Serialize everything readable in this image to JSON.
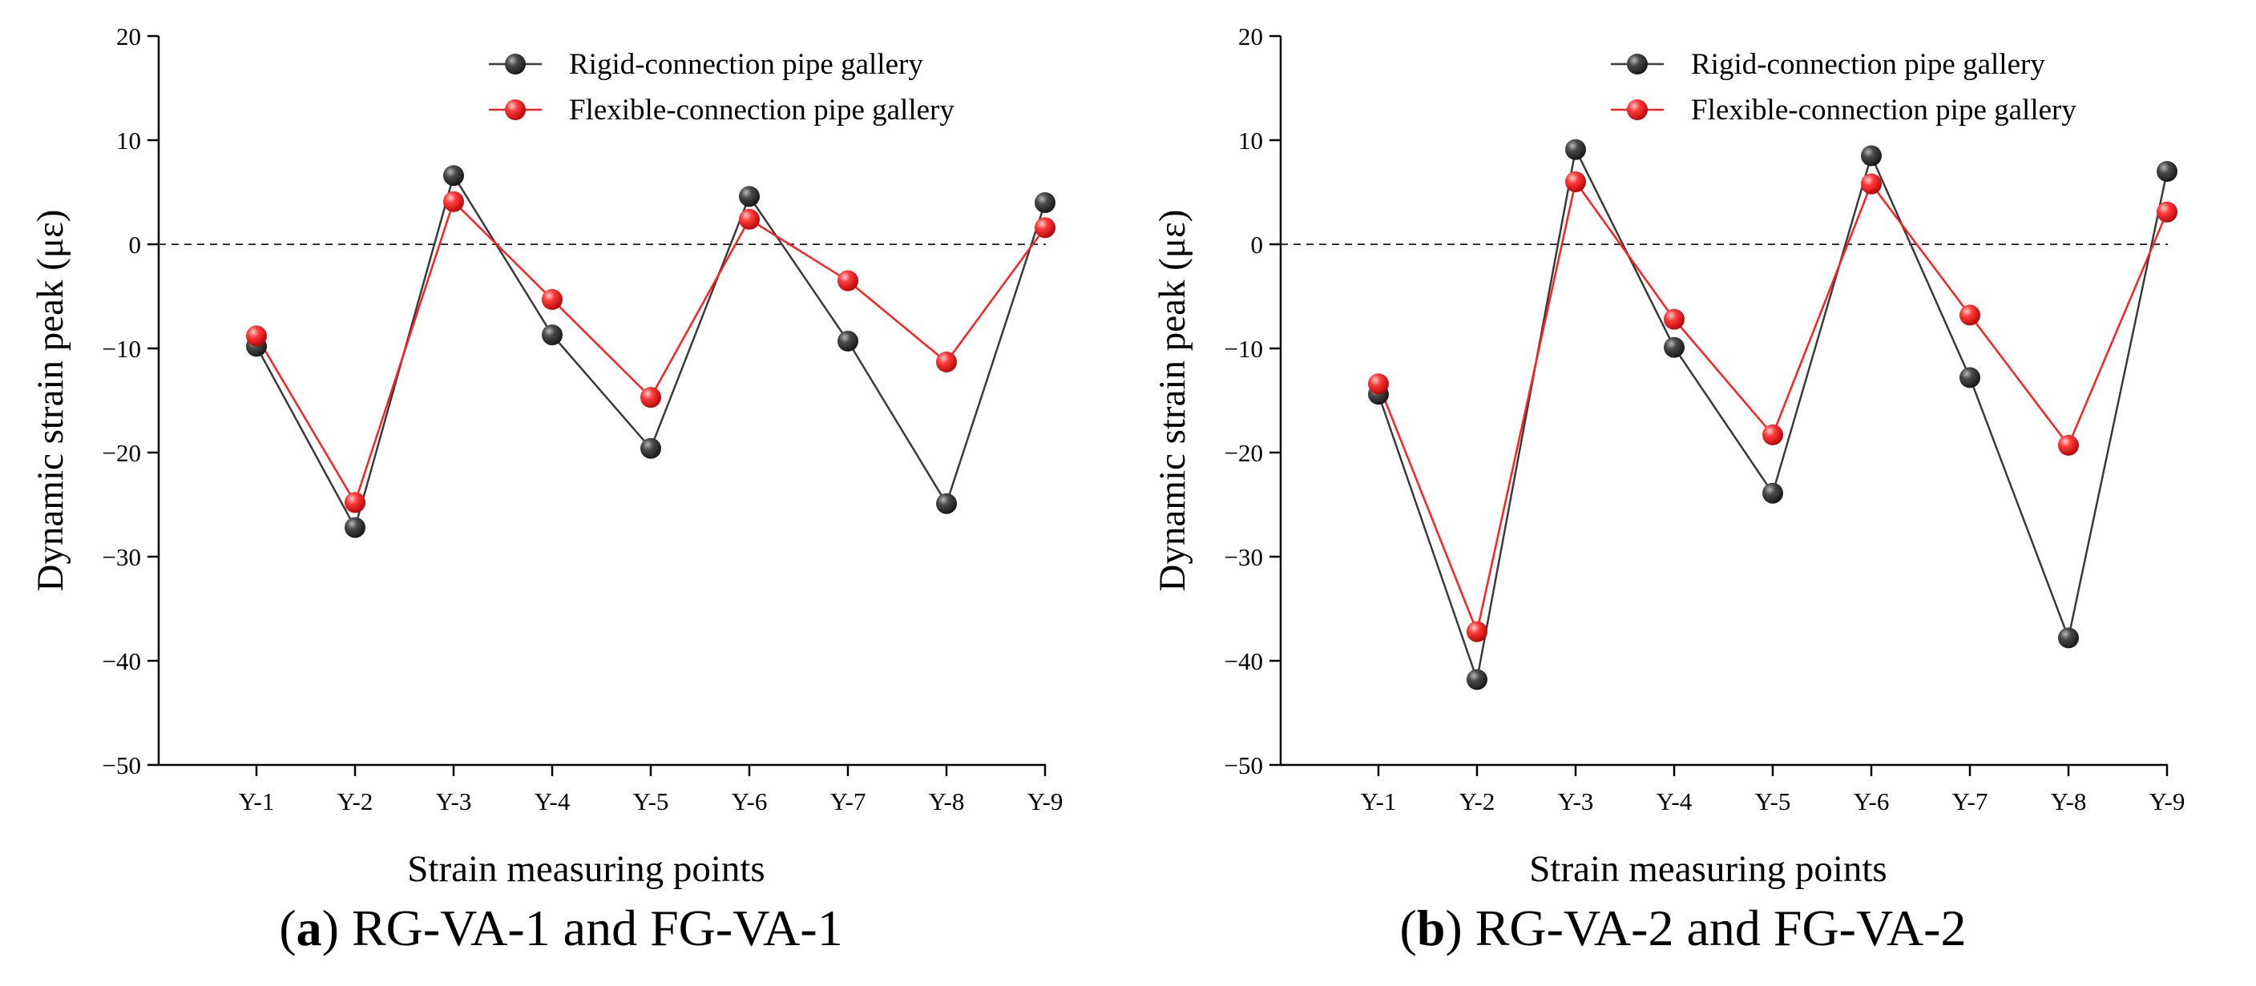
{
  "chart_data": [
    {
      "type": "line",
      "panel_letter": "a",
      "caption": "RG-VA-1 and FG-VA-1",
      "xlabel": "Strain measuring points",
      "ylabel": "Dynamic strain peak (με)",
      "categories": [
        "Y-1",
        "Y-2",
        "Y-3",
        "Y-4",
        "Y-5",
        "Y-6",
        "Y-7",
        "Y-8",
        "Y-9"
      ],
      "ylim": [
        -50,
        20
      ],
      "yticks": [
        -50,
        -40,
        -30,
        -20,
        -10,
        0,
        10,
        20
      ],
      "ytick_labels": [
        "−50",
        "−40",
        "−30",
        "−20",
        "−10",
        "0",
        "10",
        "20"
      ],
      "reference_line": 0,
      "legend_position": "top-right",
      "series": [
        {
          "name": "Rigid-connection pipe gallery",
          "color": "#3a3a3a",
          "values": [
            -9.8,
            -27.2,
            6.6,
            -8.7,
            -19.6,
            4.6,
            -9.3,
            -24.9,
            4.0
          ]
        },
        {
          "name": "Flexible-connection pipe gallery",
          "color": "#ff1f1f",
          "values": [
            -8.8,
            -24.8,
            4.1,
            -5.3,
            -14.7,
            2.4,
            -3.5,
            -11.3,
            1.6
          ]
        }
      ]
    },
    {
      "type": "line",
      "panel_letter": "b",
      "caption": "RG-VA-2 and FG-VA-2",
      "xlabel": "Strain measuring points",
      "ylabel": "Dynamic strain peak (με)",
      "categories": [
        "Y-1",
        "Y-2",
        "Y-3",
        "Y-4",
        "Y-5",
        "Y-6",
        "Y-7",
        "Y-8",
        "Y-9"
      ],
      "ylim": [
        -50,
        20
      ],
      "yticks": [
        -50,
        -40,
        -30,
        -20,
        -10,
        0,
        10,
        20
      ],
      "ytick_labels": [
        "−50",
        "−40",
        "−30",
        "−20",
        "−10",
        "0",
        "10",
        "20"
      ],
      "reference_line": 0,
      "legend_position": "top-right",
      "series": [
        {
          "name": "Rigid-connection pipe gallery",
          "color": "#3a3a3a",
          "values": [
            -14.4,
            -41.8,
            9.1,
            -9.9,
            -23.9,
            8.5,
            -12.8,
            -37.8,
            7.0
          ]
        },
        {
          "name": "Flexible-connection pipe gallery",
          "color": "#ff1f1f",
          "values": [
            -13.4,
            -37.2,
            6.0,
            -7.2,
            -18.3,
            5.8,
            -6.8,
            -19.3,
            3.1
          ]
        }
      ]
    }
  ]
}
